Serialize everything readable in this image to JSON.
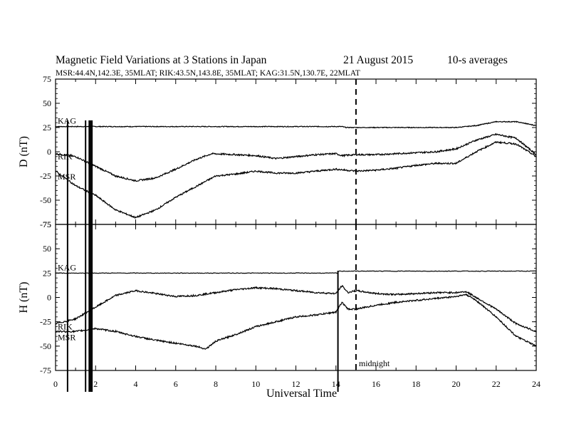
{
  "header": {
    "title": "Magnetic Field Variations at 3 Stations in Japan",
    "date": "21  August  2015",
    "averaging": "10-s averages",
    "stations": "MSR:44.4N,142.3E, 35MLAT;  RIK:43.5N,143.8E, 35MLAT;  KAG:31.5N,130.7E, 22MLAT"
  },
  "chart_data": {
    "type": "line",
    "xlabel": "Universal Time",
    "xlim": [
      0,
      24
    ],
    "xticks": [
      "0",
      "2",
      "4",
      "6",
      "8",
      "10",
      "12",
      "14",
      "16",
      "18",
      "20",
      "22",
      "24"
    ],
    "annotation": "midnight",
    "midnight_ut": 15,
    "vertical_markers_ut": [
      0.6,
      1.5,
      1.7,
      1.8,
      14.1
    ],
    "panels": [
      {
        "name": "D",
        "ylabel": "D (nT)",
        "ylim": [
          -75,
          75
        ],
        "yticks": [
          "75",
          "50",
          "25",
          "0",
          "-25",
          "-50",
          "-75"
        ],
        "series": [
          {
            "name": "KAG",
            "x": [
              0,
              4,
              8,
              12,
              14.3,
              14.5,
              20,
              21,
              22,
              23,
              23.5,
              24
            ],
            "values": [
              26,
              26,
              26,
              26,
              26,
              25,
              25,
              27,
              31,
              31,
              29,
              27
            ]
          },
          {
            "name": "RIK",
            "x": [
              0,
              1,
              2,
              3,
              4,
              5,
              6,
              7,
              7.8,
              9,
              10,
              11,
              12,
              13,
              14,
              14.3,
              15,
              16,
              17,
              18,
              19,
              20,
              21,
              22,
              23,
              24
            ],
            "values": [
              -2,
              -5,
              -15,
              -25,
              -30,
              -27,
              -18,
              -8,
              -2,
              -3,
              -4,
              -7,
              -5,
              -3,
              -2,
              -4,
              -3,
              -3,
              -2,
              -1,
              0,
              3,
              12,
              18,
              14,
              -3
            ]
          },
          {
            "name": "MSR",
            "x": [
              0,
              1,
              2,
              3,
              4,
              5,
              6,
              7,
              8,
              9,
              10,
              11,
              12,
              13,
              14,
              15,
              16,
              17,
              18,
              19,
              20,
              21,
              22,
              23,
              24
            ],
            "values": [
              -20,
              -35,
              -45,
              -60,
              -68,
              -60,
              -47,
              -36,
              -25,
              -23,
              -20,
              -22,
              -22,
              -20,
              -18,
              -20,
              -19,
              -17,
              -14,
              -12,
              -12,
              0,
              10,
              8,
              -5
            ]
          }
        ]
      },
      {
        "name": "H",
        "ylabel": "H (nT)",
        "ylim": [
          -75,
          75
        ],
        "yticks": [
          "75",
          "50",
          "25",
          "0",
          "-25",
          "-50",
          "-75"
        ],
        "series": [
          {
            "name": "KAG",
            "x": [
              0,
              14.1,
              14.1,
              24
            ],
            "values": [
              25,
              25,
              27,
              27
            ]
          },
          {
            "name": "RIK",
            "x": [
              0,
              1,
              2,
              3,
              4,
              5,
              6,
              7,
              8,
              9,
              10,
              11,
              12,
              13,
              14,
              14.3,
              14.6,
              15,
              16,
              17,
              18,
              19,
              20,
              20.5,
              21,
              22,
              23,
              24
            ],
            "values": [
              -27,
              -22,
              -10,
              2,
              7,
              4,
              1,
              2,
              5,
              8,
              10,
              9,
              7,
              5,
              4,
              12,
              5,
              7,
              4,
              3,
              4,
              5,
              5,
              6,
              0,
              -12,
              -27,
              -35
            ]
          },
          {
            "name": "MSR",
            "x": [
              0,
              1,
              2,
              3,
              4,
              5,
              6,
              7,
              7.5,
              8,
              9,
              10,
              11,
              12,
              13,
              14,
              14.3,
              14.6,
              15,
              16,
              17,
              18,
              19,
              20,
              20.5,
              21,
              22,
              23,
              24
            ],
            "values": [
              -35,
              -35,
              -32,
              -35,
              -40,
              -44,
              -47,
              -50,
              -53,
              -45,
              -38,
              -30,
              -25,
              -20,
              -18,
              -15,
              -5,
              -12,
              -12,
              -8,
              -5,
              -3,
              -1,
              1,
              3,
              -3,
              -20,
              -40,
              -50
            ]
          }
        ]
      }
    ]
  }
}
